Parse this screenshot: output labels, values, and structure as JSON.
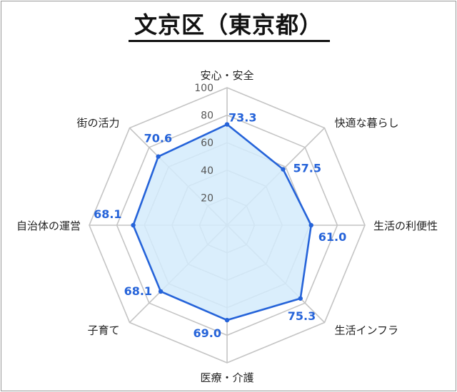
{
  "title": "文京区（東京都）",
  "colors": {
    "series_line": "#2563d9",
    "series_fill": "#d3ebfb",
    "value_label": "#2563d9",
    "grid": "#c4c4c4",
    "frame": "#9a9a9a"
  },
  "chart_data": {
    "type": "radar",
    "title": "文京区（東京都）",
    "axes": [
      "安心・安全",
      "快適な暮らし",
      "生活の利便性",
      "生活インフラ",
      "医療・介護",
      "子育て",
      "自治体の運営",
      "街の活力"
    ],
    "ticks": [
      20,
      40,
      60,
      80,
      100
    ],
    "range": [
      0,
      100
    ],
    "grid": true,
    "series": [
      {
        "values": [
          73.3,
          57.5,
          61.0,
          75.3,
          69.0,
          68.1,
          68.1,
          70.6
        ],
        "labels": [
          "73.3",
          "57.5",
          "61.0",
          "75.3",
          "69.0",
          "68.1",
          "68.1",
          "70.6"
        ]
      }
    ]
  }
}
